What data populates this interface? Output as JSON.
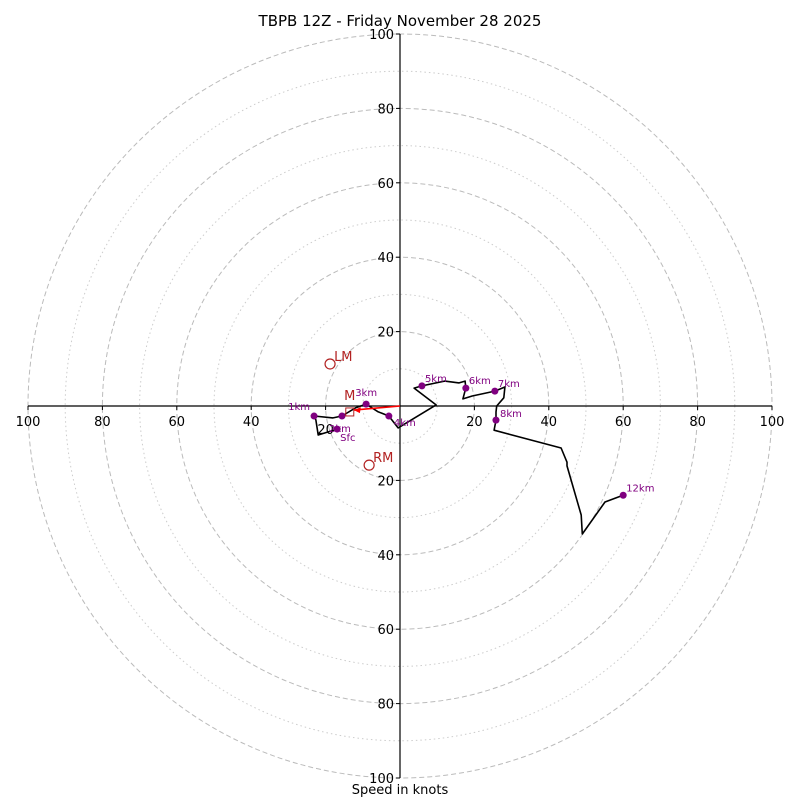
{
  "chart_data": {
    "type": "line",
    "subtype": "hodograph",
    "title": "TBPB 12Z - Friday November 28 2025",
    "xlabel": "Speed in knots",
    "ylabel": "",
    "xlim": [
      -100,
      100
    ],
    "ylim": [
      -100,
      100
    ],
    "rings_major": [
      20,
      40,
      60,
      80,
      100
    ],
    "rings_minor": [
      10,
      30,
      50,
      70,
      90
    ],
    "x_tick_labels": [
      "100",
      "80",
      "60",
      "40",
      "20",
      "20",
      "40",
      "60",
      "80",
      "100"
    ],
    "x_tick_values": [
      -100,
      -80,
      -60,
      -40,
      -20,
      20,
      40,
      60,
      80,
      100
    ],
    "y_tick_labels": [
      "100",
      "80",
      "60",
      "40",
      "20",
      "20",
      "40",
      "60",
      "80",
      "100"
    ],
    "y_tick_values": [
      100,
      80,
      60,
      40,
      20,
      -20,
      -40,
      -60,
      -80,
      -100
    ],
    "colors": {
      "trace": "#000000",
      "markers": "#800080",
      "storm": "#b22222",
      "shear_vector": "#ff0000",
      "rings": "#bbbbbb"
    },
    "hodograph": {
      "u": [
        -16.9,
        -22,
        -22.6,
        -23.1,
        -18,
        -15.6,
        -12,
        -9.1,
        -6,
        -3,
        -0.5,
        9.7,
        3.8,
        5.9,
        12,
        15.9,
        17.5,
        17.7,
        16.9,
        19.4,
        25.5,
        28.2,
        27.9,
        26,
        25.8,
        25.8,
        25.3,
        43.3,
        44.9,
        44.9,
        48.7,
        49,
        55.1,
        58.6,
        60
      ],
      "v": [
        -6.2,
        -7.8,
        -3.8,
        -2.7,
        -3.2,
        -2.7,
        -0.5,
        0.5,
        -1.5,
        -2.7,
        -5.9,
        0.3,
        4.8,
        5.4,
        6.7,
        6.2,
        6.7,
        4.8,
        1.9,
        2.7,
        4,
        5.1,
        2.2,
        0,
        -1.6,
        -3.8,
        -6.5,
        -11.3,
        -15.1,
        -16.1,
        -29.3,
        -34.4,
        -25.8,
        -24.5,
        -24
      ]
    },
    "height_markers": [
      {
        "label": "Sfc",
        "u": -16.9,
        "v": -6.2
      },
      {
        "label": "1km",
        "u": -23.1,
        "v": -2.7
      },
      {
        "label": "2km",
        "u": -15.6,
        "v": -2.7
      },
      {
        "label": "3km",
        "u": -9.1,
        "v": 0.5
      },
      {
        "label": "4km",
        "u": -3,
        "v": -2.7
      },
      {
        "label": "5km",
        "u": 5.9,
        "v": 5.4
      },
      {
        "label": "6km",
        "u": 17.7,
        "v": 4.8
      },
      {
        "label": "7km",
        "u": 25.5,
        "v": 4
      },
      {
        "label": "8km",
        "u": 25.8,
        "v": -3.8
      },
      {
        "label": "12km",
        "u": 60,
        "v": -24
      }
    ],
    "storm_motions": [
      {
        "label": "LM",
        "u": -18.8,
        "v": 11.3
      },
      {
        "label": "RM",
        "u": -8.3,
        "v": -15.9
      },
      {
        "label": "M",
        "u": -13.5,
        "v": -1.6
      }
    ],
    "shear_vector": {
      "from": [
        0,
        0
      ],
      "to": [
        -12.4,
        -1.1
      ]
    }
  }
}
